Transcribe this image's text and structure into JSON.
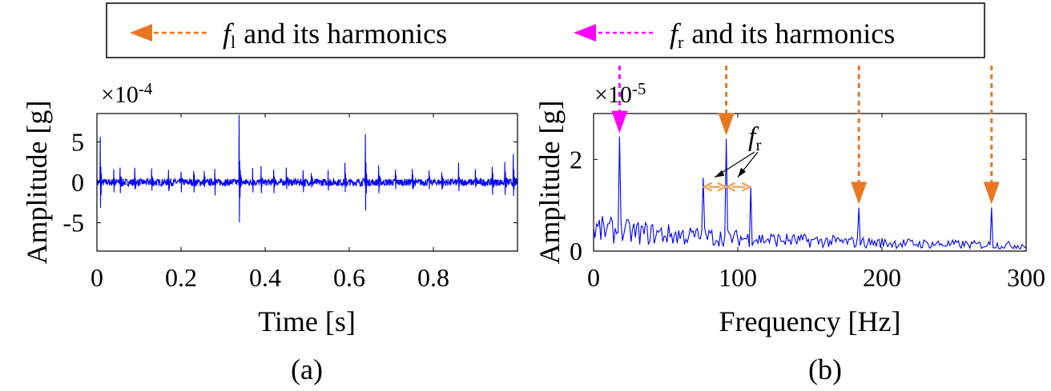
{
  "colors": {
    "signal": "#0000ff",
    "fl_arrow": "#e87722",
    "fr_arrow": "#ff00ff",
    "fr_spacing": "#f0a868",
    "axis": "#000000"
  },
  "legend": {
    "fl_symbol": "f",
    "fl_subscript": "l",
    "fl_text": "and its harmonics",
    "fr_symbol": "f",
    "fr_subscript": "r",
    "fr_text": "and its harmonics"
  },
  "chart_data": [
    {
      "id": "a",
      "type": "line",
      "panel_label": "(a)",
      "xlabel": "Time [s]",
      "ylabel": "Amplitude [g]",
      "exponent_label": "×10",
      "exponent_power": "-4",
      "xlim": [
        0,
        1.0
      ],
      "ylim": [
        -8.5,
        8.5
      ],
      "xticks": [
        0,
        0.2,
        0.4,
        0.6,
        0.8
      ],
      "xtick_labels": [
        "0",
        "0.2",
        "0.4",
        "0.6",
        "0.8"
      ],
      "yticks": [
        -5,
        0,
        5
      ],
      "ytick_labels": [
        "-5",
        "0",
        "5"
      ],
      "impulses": [
        {
          "t": 0.008,
          "amp": 6.0
        },
        {
          "t": 0.04,
          "amp": 1.8
        },
        {
          "t": 0.055,
          "amp": 2.2
        },
        {
          "t": 0.09,
          "amp": 2.0
        },
        {
          "t": 0.13,
          "amp": 1.8
        },
        {
          "t": 0.17,
          "amp": 2.0
        },
        {
          "t": 0.2,
          "amp": 1.6
        },
        {
          "t": 0.23,
          "amp": 1.7
        },
        {
          "t": 0.255,
          "amp": 1.5
        },
        {
          "t": 0.28,
          "amp": 2.3
        },
        {
          "t": 0.338,
          "amp": 8.6
        },
        {
          "t": 0.37,
          "amp": 2.0
        },
        {
          "t": 0.39,
          "amp": 1.6
        },
        {
          "t": 0.42,
          "amp": 2.0
        },
        {
          "t": 0.45,
          "amp": 1.8
        },
        {
          "t": 0.49,
          "amp": 1.8
        },
        {
          "t": 0.51,
          "amp": 1.5
        },
        {
          "t": 0.55,
          "amp": 1.7
        },
        {
          "t": 0.59,
          "amp": 2.3
        },
        {
          "t": 0.638,
          "amp": 6.2
        },
        {
          "t": 0.67,
          "amp": 2.2
        },
        {
          "t": 0.71,
          "amp": 1.8
        },
        {
          "t": 0.75,
          "amp": 1.9
        },
        {
          "t": 0.79,
          "amp": 1.9
        },
        {
          "t": 0.82,
          "amp": 1.5
        },
        {
          "t": 0.86,
          "amp": 2.4
        },
        {
          "t": 0.9,
          "amp": 1.8
        },
        {
          "t": 0.94,
          "amp": 2.2
        },
        {
          "t": 0.97,
          "amp": 3.0
        },
        {
          "t": 0.99,
          "amp": 3.4
        }
      ],
      "noise_amplitude": 0.45
    },
    {
      "id": "b",
      "type": "line",
      "panel_label": "(b)",
      "xlabel": "Frequency [Hz]",
      "ylabel": "Amplitude [g]",
      "exponent_label": "×10",
      "exponent_power": "-5",
      "xlim": [
        0,
        300
      ],
      "ylim": [
        0,
        3
      ],
      "xticks": [
        0,
        100,
        200,
        300
      ],
      "xtick_labels": [
        "0",
        "100",
        "200",
        "300"
      ],
      "yticks": [
        0,
        2
      ],
      "ytick_labels": [
        "0",
        "2"
      ],
      "peaks": [
        {
          "f": 18,
          "amp": 2.5
        },
        {
          "f": 76,
          "amp": 1.6
        },
        {
          "f": 92,
          "amp": 2.45
        },
        {
          "f": 109,
          "amp": 1.4
        },
        {
          "f": 184,
          "amp": 0.95
        },
        {
          "f": 276,
          "amp": 0.95
        }
      ],
      "fl_harmonics_hz": [
        92,
        184,
        276
      ],
      "fr_harmonics_hz": [
        18
      ],
      "fr_sideband_hz": [
        76,
        92,
        109
      ],
      "annotation_symbol": "f",
      "annotation_subscript": "r"
    }
  ]
}
